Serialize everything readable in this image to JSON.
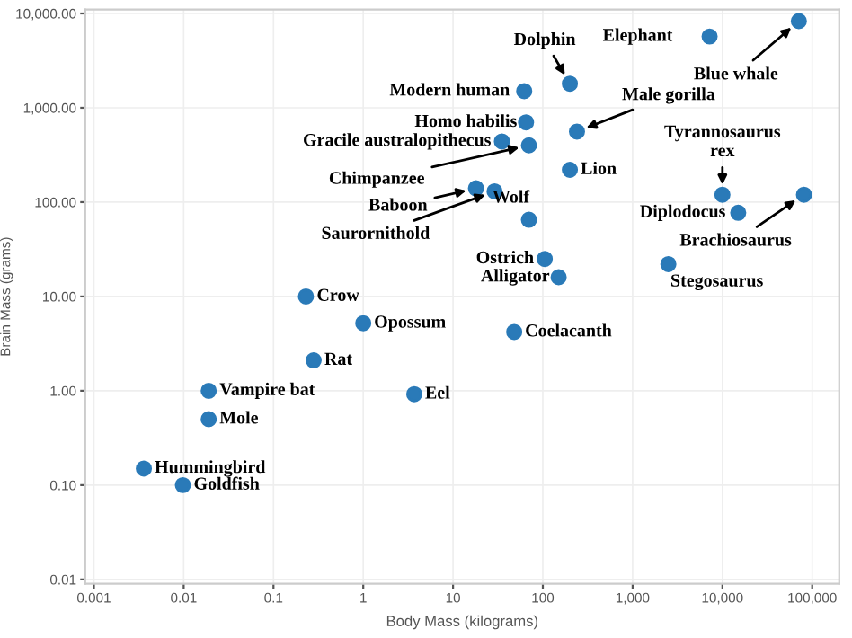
{
  "chart_data": {
    "type": "scatter",
    "xlabel": "Body Mass (kilograms)",
    "ylabel": "Brain Mass (grams)",
    "log": "xy",
    "grid": true,
    "marker": "circle",
    "xlim": [
      0.0008,
      200000
    ],
    "ylim": [
      0.009,
      11000
    ],
    "xticks": [
      {
        "value": 0.001,
        "label": "0.001"
      },
      {
        "value": 0.01,
        "label": "0.01"
      },
      {
        "value": 0.1,
        "label": "0.1"
      },
      {
        "value": 1,
        "label": "1"
      },
      {
        "value": 10,
        "label": "10"
      },
      {
        "value": 100,
        "label": "100"
      },
      {
        "value": 1000,
        "label": "1,000"
      },
      {
        "value": 10000,
        "label": "10,000"
      },
      {
        "value": 100000,
        "label": "100,000"
      }
    ],
    "yticks": [
      {
        "value": 0.01,
        "label": "0.01"
      },
      {
        "value": 0.1,
        "label": "0.10"
      },
      {
        "value": 1,
        "label": "1.00"
      },
      {
        "value": 10,
        "label": "10.00"
      },
      {
        "value": 100,
        "label": "100.00"
      },
      {
        "value": 1000,
        "label": "1,000.00"
      },
      {
        "value": 10000,
        "label": "10,000.00"
      }
    ],
    "series": [
      {
        "color": "#2a7ab8",
        "x": [
          7200,
          71000,
          200,
          62,
          65,
          35,
          70,
          240,
          200,
          18,
          29,
          70,
          105,
          150,
          10000,
          15000,
          81000,
          2500,
          0.23,
          1,
          0.28,
          48,
          3.7,
          0.019,
          0.019,
          0.0036,
          0.0098
        ],
        "values": [
          5700,
          8300,
          1800,
          1500,
          700,
          440,
          400,
          560,
          220,
          140,
          130,
          65,
          25,
          16,
          120,
          77,
          120,
          22,
          10,
          5.2,
          2.1,
          4.2,
          0.92,
          1,
          0.5,
          0.15,
          0.1
        ]
      }
    ],
    "annotations": [
      {
        "text": "Elephant",
        "x": 7200,
        "y": 5700
      },
      {
        "text": "Blue whale",
        "x": 71000,
        "y": 8300
      },
      {
        "text": "Dolphin",
        "x": 200,
        "y": 1800
      },
      {
        "text": "Modern human",
        "x": 62,
        "y": 1500
      },
      {
        "text": "Homo habilis",
        "x": 65,
        "y": 700
      },
      {
        "text": "Gracile australopithecus",
        "x": 35,
        "y": 440
      },
      {
        "text": "Chimpanzee",
        "x": 70,
        "y": 400
      },
      {
        "text": "Male gorilla",
        "x": 240,
        "y": 560
      },
      {
        "text": "Lion",
        "x": 200,
        "y": 220
      },
      {
        "text": "Baboon",
        "x": 18,
        "y": 140
      },
      {
        "text": "Saurornithold",
        "x": 29,
        "y": 130
      },
      {
        "text": "Wolf",
        "x": 70,
        "y": 65
      },
      {
        "text": "Ostrich",
        "x": 105,
        "y": 25
      },
      {
        "text": "Alligator",
        "x": 150,
        "y": 16
      },
      {
        "text": "Tyrannosaurus\nrex",
        "x": 10000,
        "y": 120
      },
      {
        "text": "Diplodocus",
        "x": 15000,
        "y": 77
      },
      {
        "text": "Brachiosaurus",
        "x": 81000,
        "y": 120
      },
      {
        "text": "Stegosaurus",
        "x": 2500,
        "y": 22
      },
      {
        "text": "Crow",
        "x": 0.23,
        "y": 10
      },
      {
        "text": "Opossum",
        "x": 1,
        "y": 5.2
      },
      {
        "text": "Rat",
        "x": 0.28,
        "y": 2.1
      },
      {
        "text": "Coelacanth",
        "x": 48,
        "y": 4.2
      },
      {
        "text": "Eel",
        "x": 3.7,
        "y": 0.92
      },
      {
        "text": "Vampire bat",
        "x": 0.019,
        "y": 1
      },
      {
        "text": "Mole",
        "x": 0.019,
        "y": 0.5
      },
      {
        "text": "Hummingbird",
        "x": 0.0036,
        "y": 0.15
      },
      {
        "text": "Goldfish",
        "x": 0.0098,
        "y": 0.1
      }
    ]
  }
}
